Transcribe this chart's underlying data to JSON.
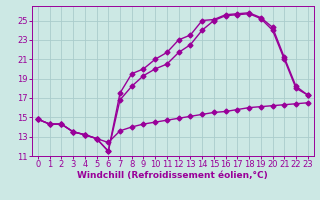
{
  "background_color": "#cce8e4",
  "grid_color": "#aacccc",
  "line_color": "#990099",
  "xlim": [
    -0.5,
    23.5
  ],
  "ylim": [
    11,
    26.5
  ],
  "xticks": [
    0,
    1,
    2,
    3,
    4,
    5,
    6,
    7,
    8,
    9,
    10,
    11,
    12,
    13,
    14,
    15,
    16,
    17,
    18,
    19,
    20,
    21,
    22,
    23
  ],
  "yticks": [
    11,
    13,
    15,
    17,
    19,
    21,
    23,
    25
  ],
  "xlabel": "Windchill (Refroidissement éolien,°C)",
  "curve_bottom_x": [
    0,
    1,
    2,
    3,
    4,
    5,
    6,
    7,
    8,
    9,
    10,
    11,
    12,
    13,
    14,
    15,
    16,
    17,
    18,
    19,
    20,
    21,
    22,
    23
  ],
  "curve_bottom_y": [
    14.8,
    14.3,
    14.3,
    13.5,
    13.2,
    12.8,
    12.4,
    13.6,
    14.0,
    14.3,
    14.5,
    14.7,
    14.9,
    15.1,
    15.3,
    15.5,
    15.6,
    15.8,
    16.0,
    16.1,
    16.2,
    16.3,
    16.4,
    16.5
  ],
  "curve_mid_x": [
    0,
    1,
    2,
    3,
    4,
    5,
    6,
    7,
    8,
    9,
    10,
    11,
    12,
    13,
    14,
    15,
    16,
    17,
    18,
    19,
    20,
    21,
    22,
    23
  ],
  "curve_mid_y": [
    14.8,
    14.3,
    14.3,
    13.5,
    13.2,
    12.8,
    11.5,
    16.8,
    18.2,
    19.3,
    20.0,
    20.5,
    21.7,
    22.5,
    24.0,
    25.0,
    25.5,
    25.6,
    25.7,
    25.2,
    24.0,
    21.0,
    18.0,
    17.3
  ],
  "curve_top_x": [
    0,
    1,
    2,
    3,
    4,
    5,
    6,
    7,
    8,
    9,
    10,
    11,
    12,
    13,
    14,
    15,
    16,
    17,
    18,
    19,
    20,
    21,
    22,
    23
  ],
  "curve_top_y": [
    14.8,
    14.3,
    14.3,
    13.5,
    13.2,
    12.8,
    11.5,
    17.5,
    19.5,
    20.0,
    21.0,
    21.7,
    23.0,
    23.5,
    25.0,
    25.1,
    25.6,
    25.7,
    25.8,
    25.3,
    24.3,
    21.2,
    18.2,
    17.3
  ],
  "marker": "D",
  "markersize": 2.5,
  "linewidth": 1.0,
  "xlabel_fontsize": 6.5,
  "tick_fontsize": 6.0
}
